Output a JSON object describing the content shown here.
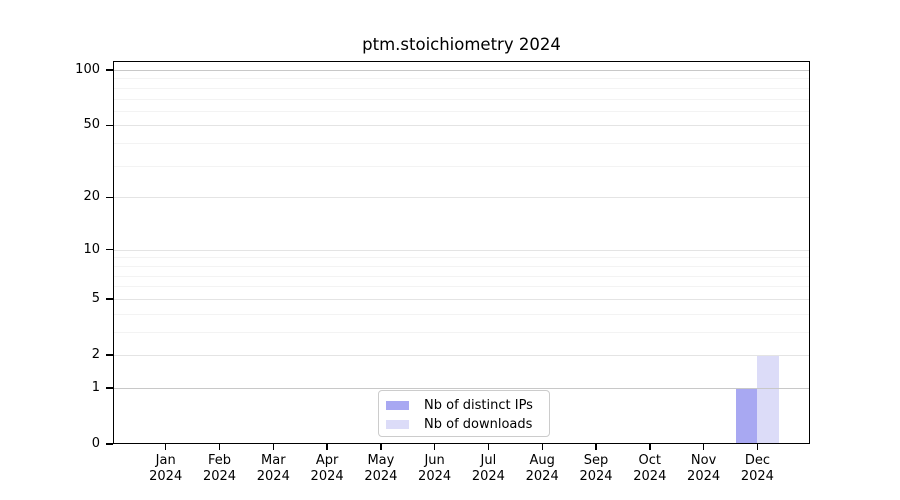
{
  "chart_data": {
    "type": "bar",
    "title": "ptm.stoichiometry 2024",
    "categories": [
      "Jan 2024",
      "Feb 2024",
      "Mar 2024",
      "Apr 2024",
      "May 2024",
      "Jun 2024",
      "Jul 2024",
      "Aug 2024",
      "Sep 2024",
      "Oct 2024",
      "Nov 2024",
      "Dec 2024"
    ],
    "series": [
      {
        "name": "Nb of distinct IPs",
        "color": "#a8a8f2",
        "values": [
          0,
          0,
          0,
          0,
          0,
          0,
          0,
          0,
          0,
          0,
          0,
          1
        ]
      },
      {
        "name": "Nb of downloads",
        "color": "#dcdcf8",
        "values": [
          0,
          0,
          0,
          0,
          0,
          0,
          0,
          0,
          0,
          0,
          0,
          2
        ]
      }
    ],
    "xlabel": "",
    "ylabel": "",
    "y_axis": {
      "scale": "log1p",
      "ticks": [
        0,
        1,
        2,
        5,
        10,
        20,
        50,
        100
      ],
      "minor_ticks": [
        3,
        4,
        6,
        7,
        8,
        9,
        30,
        40,
        60,
        70,
        80,
        90
      ],
      "ylim": [
        0,
        112
      ]
    },
    "grid": true,
    "legend": {
      "position": "bottom-center",
      "entries": [
        "Nb of distinct IPs",
        "Nb of downloads"
      ]
    },
    "colors": {
      "bar_distinct_ips": "#a8a8f2",
      "bar_downloads": "#dcdcf8",
      "axis": "#000000",
      "grid_major": "#e4e4e4",
      "grid_minor": "#f3f3f3",
      "grid_emphasis": "#c8c8c8",
      "legend_border": "#cccccc",
      "background": "#ffffff"
    }
  }
}
